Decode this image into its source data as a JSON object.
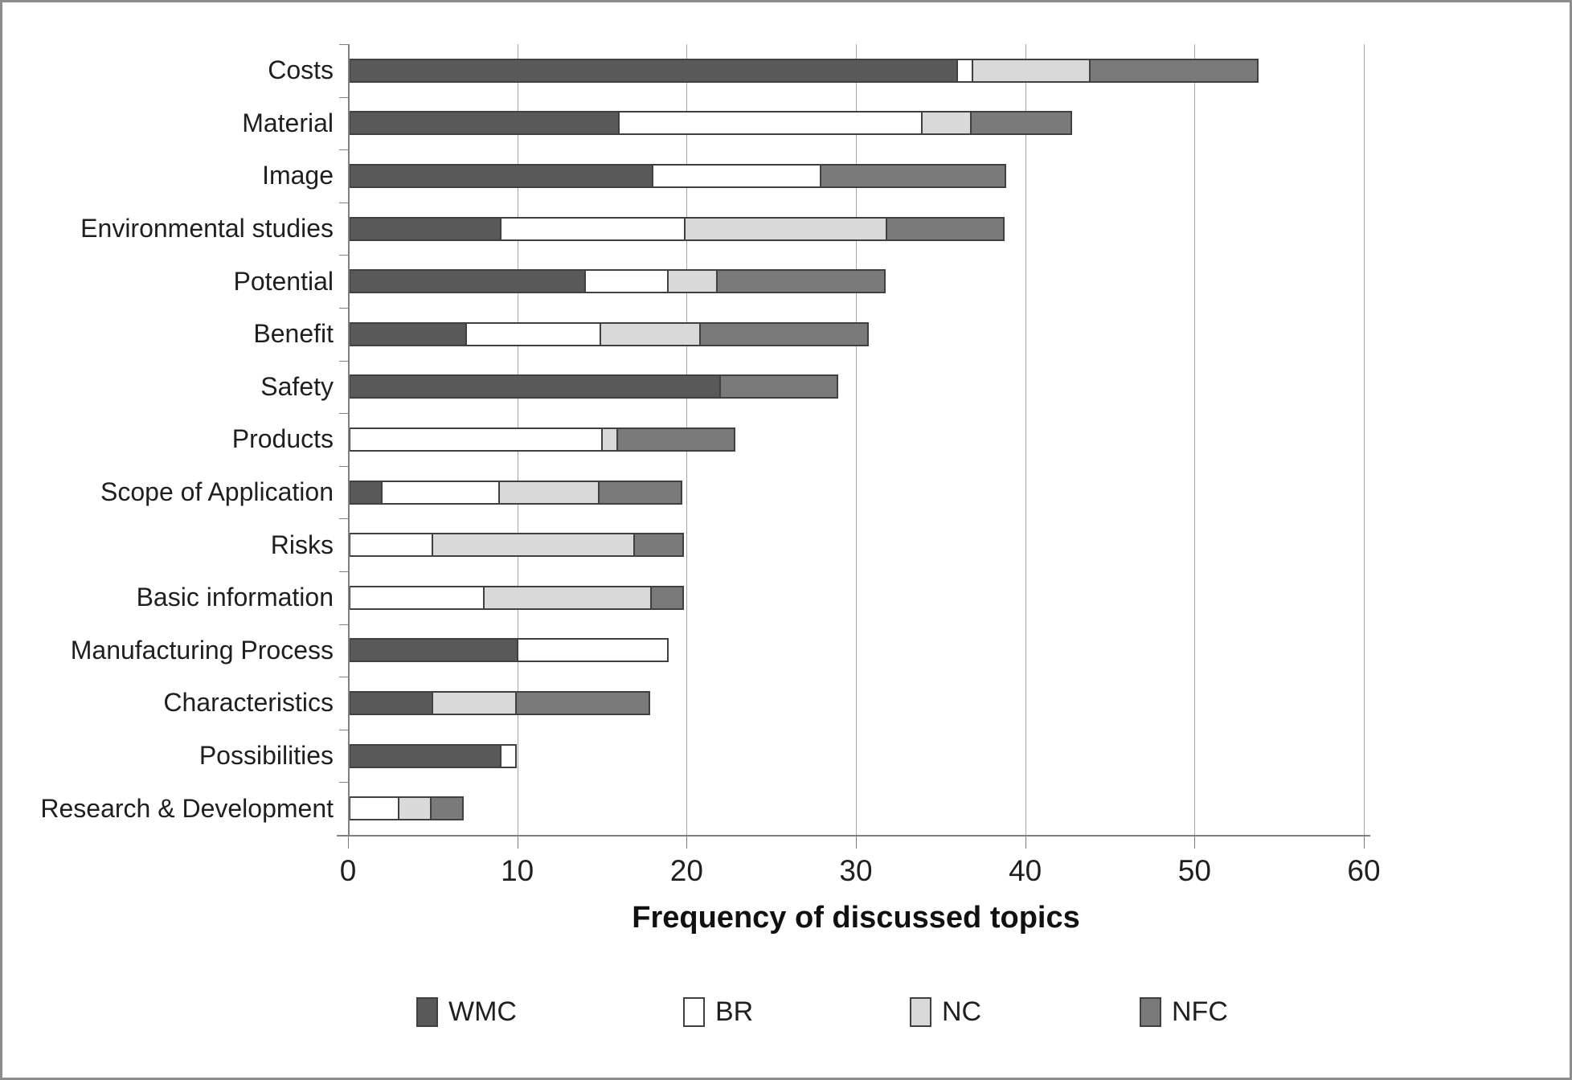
{
  "chart_data": {
    "type": "bar",
    "orientation": "horizontal-stacked",
    "xlabel": "Frequency of discussed topics",
    "xlim": [
      0,
      60
    ],
    "xticks": [
      0,
      10,
      20,
      30,
      40,
      50,
      60
    ],
    "grid": "vertical-gridlines-every-10",
    "legend_position": "bottom",
    "categories": [
      "Costs",
      "Material",
      "Image",
      "Environmental studies",
      "Potential",
      "Benefit",
      "Safety",
      "Products",
      "Scope of Application",
      "Risks",
      "Basic information",
      "Manufacturing Process",
      "Characteristics",
      "Possibilities",
      "Research & Development"
    ],
    "series": [
      {
        "name": "WMC",
        "color": "#595959",
        "values": [
          36,
          16,
          18,
          9,
          14,
          7,
          22,
          0,
          2,
          0,
          0,
          10,
          5,
          9,
          0
        ]
      },
      {
        "name": "BR",
        "color": "#ffffff",
        "values": [
          1,
          18,
          10,
          11,
          5,
          8,
          0,
          15,
          7,
          5,
          8,
          9,
          0,
          1,
          3
        ]
      },
      {
        "name": "NC",
        "color": "#d9d9d9",
        "values": [
          7,
          3,
          0,
          12,
          3,
          6,
          0,
          1,
          6,
          12,
          10,
          0,
          5,
          0,
          2
        ]
      },
      {
        "name": "NFC",
        "color": "#7a7a7a",
        "values": [
          10,
          6,
          11,
          7,
          10,
          10,
          7,
          7,
          5,
          3,
          2,
          0,
          8,
          0,
          2
        ]
      }
    ]
  },
  "chrome": {
    "background": "#ffffff",
    "frame_border": "#8c8c8c",
    "gridline": "#a6a6a6",
    "axis_line": "#808080",
    "segment_border": "#404040",
    "text": "#1f1f1f"
  }
}
